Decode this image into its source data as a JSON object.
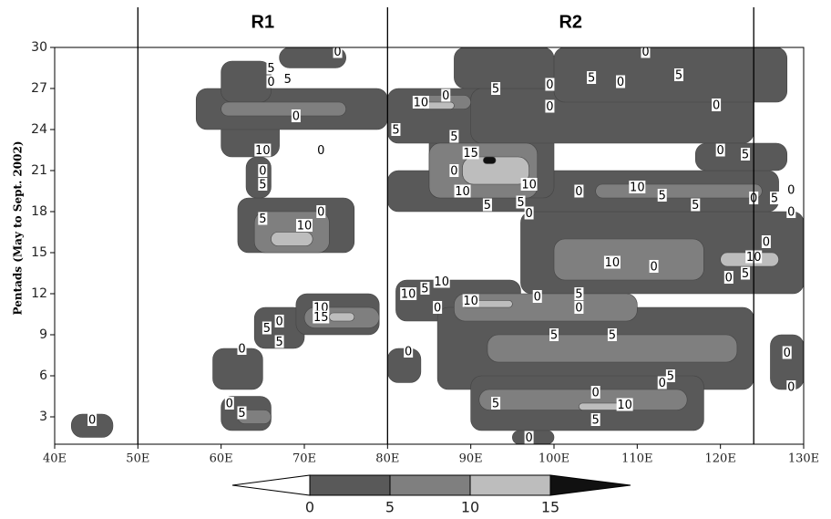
{
  "chart_data": {
    "type": "contour",
    "y_label": "Pentads (May to Sept. 2002)",
    "xlim": [
      40,
      130
    ],
    "ylim": [
      1,
      30
    ],
    "xticks": [
      {
        "value": 40,
        "label": "40E"
      },
      {
        "value": 50,
        "label": "50E"
      },
      {
        "value": 60,
        "label": "60E"
      },
      {
        "value": 70,
        "label": "70E"
      },
      {
        "value": 80,
        "label": "80E"
      },
      {
        "value": 90,
        "label": "90E"
      },
      {
        "value": 100,
        "label": "100E"
      },
      {
        "value": 110,
        "label": "110E"
      },
      {
        "value": 120,
        "label": "120E"
      },
      {
        "value": 130,
        "label": "130E"
      }
    ],
    "yticks": [
      3,
      6,
      9,
      12,
      15,
      18,
      21,
      24,
      27,
      30
    ],
    "region_lines": [
      50,
      80,
      124
    ],
    "region_names": [
      {
        "name": "R1",
        "x": 65
      },
      {
        "name": "R2",
        "x": 102
      }
    ],
    "levels": [
      0,
      5,
      10,
      15
    ],
    "colors": [
      "#595959",
      "#7f7f7f",
      "#bdbdbd",
      "#111111"
    ],
    "regions": [
      {
        "level": 0,
        "x": [
          42,
          47
        ],
        "y": [
          1.5,
          3.2
        ]
      },
      {
        "level": 0,
        "x": [
          60,
          66
        ],
        "y": [
          2,
          4.5
        ]
      },
      {
        "level": 0,
        "x": [
          59,
          65
        ],
        "y": [
          5,
          8
        ]
      },
      {
        "level": 0,
        "x": [
          64,
          70
        ],
        "y": [
          8,
          11
        ]
      },
      {
        "level": 0,
        "x": [
          69,
          79
        ],
        "y": [
          9,
          12
        ]
      },
      {
        "level": 0,
        "x": [
          62,
          76
        ],
        "y": [
          15,
          19
        ]
      },
      {
        "level": 0,
        "x": [
          63,
          66
        ],
        "y": [
          19,
          22
        ]
      },
      {
        "level": 0,
        "x": [
          60,
          67
        ],
        "y": [
          22,
          27
        ]
      },
      {
        "level": 0,
        "x": [
          57,
          80
        ],
        "y": [
          24,
          27
        ]
      },
      {
        "level": 0,
        "x": [
          60,
          66
        ],
        "y": [
          26,
          29
        ]
      },
      {
        "level": 0,
        "x": [
          67,
          75
        ],
        "y": [
          28.5,
          30
        ]
      },
      {
        "level": 0,
        "x": [
          80,
          84
        ],
        "y": [
          5.5,
          8
        ]
      },
      {
        "level": 0,
        "x": [
          81,
          96
        ],
        "y": [
          10,
          13
        ]
      },
      {
        "level": 0,
        "x": [
          86,
          124
        ],
        "y": [
          5,
          11
        ]
      },
      {
        "level": 0,
        "x": [
          90,
          118
        ],
        "y": [
          2,
          6
        ]
      },
      {
        "level": 0,
        "x": [
          95,
          100
        ],
        "y": [
          1,
          2
        ]
      },
      {
        "level": 0,
        "x": [
          96,
          130
        ],
        "y": [
          12,
          18
        ]
      },
      {
        "level": 0,
        "x": [
          80,
          127
        ],
        "y": [
          18,
          21
        ]
      },
      {
        "level": 0,
        "x": [
          85,
          100
        ],
        "y": [
          19,
          25
        ]
      },
      {
        "level": 0,
        "x": [
          80,
          92
        ],
        "y": [
          23,
          27
        ]
      },
      {
        "level": 0,
        "x": [
          90,
          124
        ],
        "y": [
          23,
          27
        ]
      },
      {
        "level": 0,
        "x": [
          88,
          100
        ],
        "y": [
          27,
          30
        ]
      },
      {
        "level": 0,
        "x": [
          100,
          128
        ],
        "y": [
          26,
          30
        ]
      },
      {
        "level": 0,
        "x": [
          117,
          128
        ],
        "y": [
          21,
          23
        ]
      },
      {
        "level": 0,
        "x": [
          126,
          130
        ],
        "y": [
          5,
          9
        ]
      },
      {
        "level": 5,
        "x": [
          62,
          66
        ],
        "y": [
          2.5,
          3.5
        ]
      },
      {
        "level": 5,
        "x": [
          70,
          79
        ],
        "y": [
          9.5,
          11
        ]
      },
      {
        "level": 5,
        "x": [
          64,
          73
        ],
        "y": [
          15,
          18
        ]
      },
      {
        "level": 5,
        "x": [
          60,
          75
        ],
        "y": [
          25,
          26
        ]
      },
      {
        "level": 5,
        "x": [
          85,
          98
        ],
        "y": [
          19,
          23
        ]
      },
      {
        "level": 5,
        "x": [
          91,
          116
        ],
        "y": [
          3.5,
          5
        ]
      },
      {
        "level": 5,
        "x": [
          88,
          110
        ],
        "y": [
          10,
          12
        ]
      },
      {
        "level": 5,
        "x": [
          92,
          122
        ],
        "y": [
          7,
          9
        ]
      },
      {
        "level": 5,
        "x": [
          100,
          118
        ],
        "y": [
          13,
          16
        ]
      },
      {
        "level": 5,
        "x": [
          105,
          125
        ],
        "y": [
          19,
          20
        ]
      },
      {
        "level": 5,
        "x": [
          84,
          90
        ],
        "y": [
          25.5,
          26.5
        ]
      },
      {
        "level": 10,
        "x": [
          66,
          71
        ],
        "y": [
          15.5,
          16.5
        ]
      },
      {
        "level": 10,
        "x": [
          73,
          76
        ],
        "y": [
          10,
          10.6
        ]
      },
      {
        "level": 10,
        "x": [
          89,
          97
        ],
        "y": [
          20,
          22
        ]
      },
      {
        "level": 10,
        "x": [
          103,
          108
        ],
        "y": [
          3.5,
          4
        ]
      },
      {
        "level": 10,
        "x": [
          120,
          127
        ],
        "y": [
          14,
          15
        ]
      },
      {
        "level": 10,
        "x": [
          89,
          95
        ],
        "y": [
          11,
          11.5
        ]
      },
      {
        "level": 10,
        "x": [
          84,
          88
        ],
        "y": [
          25.5,
          26
        ]
      },
      {
        "level": 15,
        "x": [
          91.5,
          93
        ],
        "y": [
          21.5,
          22
        ]
      }
    ],
    "contour_labels": [
      {
        "x": 44.5,
        "y": 2.8,
        "value": 0
      },
      {
        "x": 61,
        "y": 4,
        "value": 0
      },
      {
        "x": 62.5,
        "y": 3.3,
        "value": 5
      },
      {
        "x": 62.5,
        "y": 8,
        "value": 0
      },
      {
        "x": 65.5,
        "y": 9.5,
        "value": 5
      },
      {
        "x": 67,
        "y": 10,
        "value": 0
      },
      {
        "x": 67,
        "y": 8.5,
        "value": 5
      },
      {
        "x": 72,
        "y": 11,
        "value": 10
      },
      {
        "x": 72,
        "y": 10.3,
        "value": 15
      },
      {
        "x": 70,
        "y": 17,
        "value": 10
      },
      {
        "x": 72,
        "y": 18,
        "value": 0
      },
      {
        "x": 65,
        "y": 17.5,
        "value": 5
      },
      {
        "x": 65,
        "y": 21,
        "value": 0
      },
      {
        "x": 65,
        "y": 20,
        "value": 5
      },
      {
        "x": 65,
        "y": 22.5,
        "value": 10
      },
      {
        "x": 72,
        "y": 22.5,
        "value": 0
      },
      {
        "x": 69,
        "y": 25,
        "value": 0
      },
      {
        "x": 66,
        "y": 27.5,
        "value": 0
      },
      {
        "x": 66,
        "y": 28.5,
        "value": 5
      },
      {
        "x": 68,
        "y": 27.7,
        "value": 5
      },
      {
        "x": 74,
        "y": 29.7,
        "value": 0
      },
      {
        "x": 81,
        "y": 24,
        "value": 5
      },
      {
        "x": 82.5,
        "y": 7.8,
        "value": 0
      },
      {
        "x": 84,
        "y": 26,
        "value": 10
      },
      {
        "x": 87,
        "y": 26.5,
        "value": 0
      },
      {
        "x": 88,
        "y": 23.5,
        "value": 5
      },
      {
        "x": 90,
        "y": 22.3,
        "value": 15
      },
      {
        "x": 88,
        "y": 21,
        "value": 0
      },
      {
        "x": 89,
        "y": 19.5,
        "value": 10
      },
      {
        "x": 97,
        "y": 20,
        "value": 10
      },
      {
        "x": 92,
        "y": 18.5,
        "value": 5
      },
      {
        "x": 96,
        "y": 18.7,
        "value": 5
      },
      {
        "x": 97,
        "y": 17.9,
        "value": 0
      },
      {
        "x": 103,
        "y": 19.5,
        "value": 0
      },
      {
        "x": 110,
        "y": 19.8,
        "value": 10
      },
      {
        "x": 113,
        "y": 19.2,
        "value": 5
      },
      {
        "x": 117,
        "y": 18.5,
        "value": 5
      },
      {
        "x": 124,
        "y": 19,
        "value": 0
      },
      {
        "x": 126.5,
        "y": 19,
        "value": 5
      },
      {
        "x": 128.5,
        "y": 19.6,
        "value": 0
      },
      {
        "x": 128.5,
        "y": 18,
        "value": 0
      },
      {
        "x": 82.5,
        "y": 12,
        "value": 10
      },
      {
        "x": 84.5,
        "y": 12.4,
        "value": 5
      },
      {
        "x": 86.5,
        "y": 12.9,
        "value": 10
      },
      {
        "x": 86,
        "y": 11,
        "value": 0
      },
      {
        "x": 90,
        "y": 11.5,
        "value": 10
      },
      {
        "x": 98,
        "y": 11.8,
        "value": 0
      },
      {
        "x": 103,
        "y": 12,
        "value": 5
      },
      {
        "x": 103,
        "y": 11,
        "value": 0
      },
      {
        "x": 107,
        "y": 14.3,
        "value": 10
      },
      {
        "x": 112,
        "y": 14,
        "value": 0
      },
      {
        "x": 121,
        "y": 13.2,
        "value": 0
      },
      {
        "x": 123,
        "y": 13.5,
        "value": 5
      },
      {
        "x": 124,
        "y": 14.7,
        "value": 10
      },
      {
        "x": 125.5,
        "y": 15.8,
        "value": 0
      },
      {
        "x": 100,
        "y": 9,
        "value": 5
      },
      {
        "x": 107,
        "y": 9,
        "value": 5
      },
      {
        "x": 128,
        "y": 7.7,
        "value": 0
      },
      {
        "x": 114,
        "y": 6,
        "value": 5
      },
      {
        "x": 113,
        "y": 5.5,
        "value": 0
      },
      {
        "x": 105,
        "y": 4.8,
        "value": 0
      },
      {
        "x": 108.5,
        "y": 3.9,
        "value": 10
      },
      {
        "x": 93,
        "y": 4,
        "value": 5
      },
      {
        "x": 105,
        "y": 2.8,
        "value": 5
      },
      {
        "x": 97,
        "y": 1.5,
        "value": 0
      },
      {
        "x": 128.5,
        "y": 5.2,
        "value": 0
      },
      {
        "x": 93,
        "y": 27,
        "value": 5
      },
      {
        "x": 99.5,
        "y": 27.3,
        "value": 0
      },
      {
        "x": 99.5,
        "y": 25.7,
        "value": 0
      },
      {
        "x": 104.5,
        "y": 27.8,
        "value": 5
      },
      {
        "x": 108,
        "y": 27.5,
        "value": 0
      },
      {
        "x": 111,
        "y": 29.7,
        "value": 0
      },
      {
        "x": 115,
        "y": 28,
        "value": 5
      },
      {
        "x": 119.5,
        "y": 25.8,
        "value": 0
      },
      {
        "x": 120,
        "y": 22.5,
        "value": 0
      },
      {
        "x": 123,
        "y": 22.2,
        "value": 5
      }
    ]
  }
}
